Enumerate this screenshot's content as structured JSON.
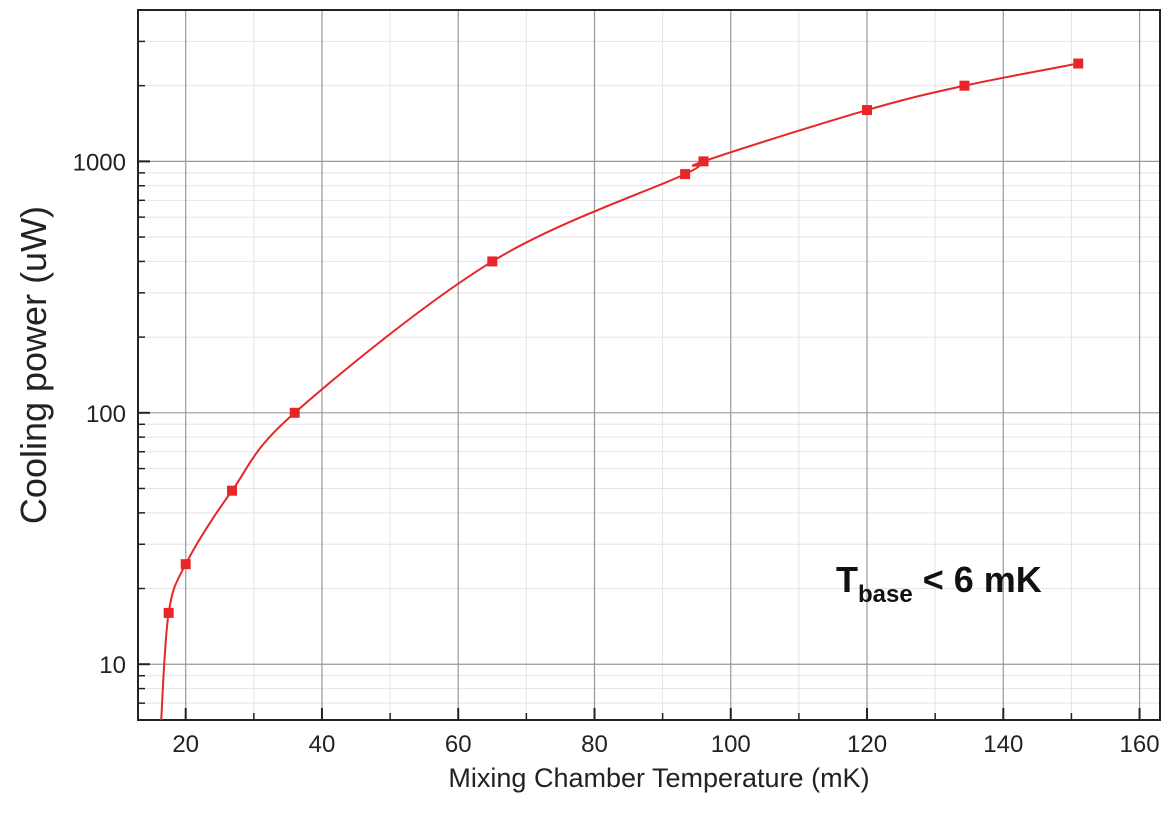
{
  "chart_data": {
    "type": "line",
    "title": "",
    "xlabel": "Mixing Chamber Temperature (mK)",
    "ylabel": "Cooling power (uW)",
    "xlim": [
      13,
      163
    ],
    "ylim": [
      6,
      4000
    ],
    "yscale": "log",
    "grid": true,
    "x_ticks": [
      20,
      40,
      60,
      80,
      100,
      120,
      140,
      160
    ],
    "y_ticks": [
      10,
      100,
      1000
    ],
    "x_tick_labels": [
      "20",
      "40",
      "60",
      "80",
      "100",
      "120",
      "140",
      "160"
    ],
    "y_tick_labels": [
      "10",
      "100",
      "1000"
    ],
    "annotation": {
      "main": "T",
      "subscript": "base",
      "rest": " < 6 mK"
    },
    "series": [
      {
        "color": "#e8262a",
        "marker": "square",
        "line_start": {
          "x": 16.4,
          "y": 6
        },
        "x": [
          17.5,
          20,
          26.8,
          36,
          65,
          93.3,
          96,
          120,
          134.3,
          151
        ],
        "y": [
          16,
          25,
          49,
          100,
          400,
          890,
          1000,
          1600,
          2000,
          2450
        ]
      }
    ]
  }
}
